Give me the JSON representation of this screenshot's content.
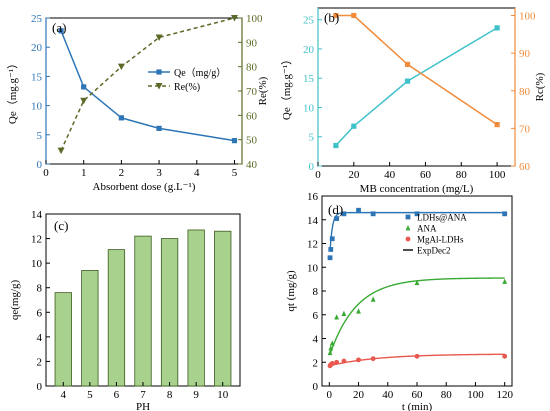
{
  "chart_data": [
    {
      "type": "line",
      "panel_label": "(a)",
      "xlabel": "Absorbent dose (g.L⁻¹)",
      "ylabel_left": "Qe（mg.g⁻¹）",
      "ylabel_right": "Re(%)",
      "xlim": [
        0,
        5.2
      ],
      "ylim_left": [
        0,
        25
      ],
      "ylim_right": [
        40,
        100
      ],
      "xticks": [
        "0",
        "1",
        "2",
        "3",
        "4",
        "5"
      ],
      "yticks_left": [
        "0",
        "5",
        "10",
        "15",
        "20",
        "25"
      ],
      "yticks_right": [
        "40",
        "50",
        "60",
        "70",
        "80",
        "90",
        "100"
      ],
      "colors": {
        "left": "#2e75b6",
        "right": "#5b6b27"
      },
      "series": [
        {
          "name": "Qe（mg/g）",
          "axis": "left",
          "marker": "square",
          "color": "#2e75b6",
          "style": "solid",
          "x": [
            0.4,
            1,
            2,
            3,
            5
          ],
          "y": [
            22.8,
            13.2,
            7.9,
            6.1,
            4.0
          ]
        },
        {
          "name": "Re(%)",
          "axis": "right",
          "marker": "triangle-down",
          "color": "#5b6b27",
          "style": "dashed",
          "x": [
            0.4,
            1,
            2,
            3,
            5
          ],
          "y": [
            45.5,
            66,
            80,
            92,
            100
          ]
        }
      ],
      "legend_position": "center-right"
    },
    {
      "type": "line",
      "panel_label": "(b)",
      "xlabel": "MB concentration (mg/L)",
      "ylabel_left": "Qe（mg.g⁻¹）",
      "ylabel_right": "Rc(%)",
      "xlim": [
        0,
        110
      ],
      "ylim_left": [
        0,
        27
      ],
      "ylim_right": [
        60,
        102
      ],
      "xticks": [
        "0",
        "20",
        "40",
        "60",
        "80",
        "100"
      ],
      "yticks_left": [
        "0",
        "5",
        "10",
        "15",
        "20",
        "25"
      ],
      "yticks_right": [
        "60",
        "70",
        "80",
        "90",
        "100"
      ],
      "colors": {
        "left": "#3fc1c9",
        "right": "#f08c3c"
      },
      "series": [
        {
          "axis": "left",
          "marker": "square",
          "color": "#3fc1c9",
          "x": [
            10,
            20,
            50,
            100
          ],
          "y": [
            3.5,
            6.8,
            14.5,
            23.6
          ]
        },
        {
          "axis": "right",
          "marker": "square",
          "color": "#f08c3c",
          "x": [
            10,
            20,
            50,
            100
          ],
          "y": [
            100,
            100,
            87,
            71
          ]
        }
      ]
    },
    {
      "type": "bar",
      "panel_label": "(c)",
      "xlabel": "PH",
      "ylabel": "qe(mg/g)",
      "ylim": [
        0,
        14
      ],
      "categories": [
        "4",
        "5",
        "6",
        "7",
        "8",
        "9",
        "10"
      ],
      "values": [
        7.6,
        9.4,
        11.1,
        12.2,
        12.0,
        12.7,
        12.6
      ],
      "yticks": [
        "0",
        "2",
        "4",
        "6",
        "8",
        "10",
        "12",
        "14"
      ],
      "bar_color": "#a9d18e",
      "bar_edge": "#3a5a1c"
    },
    {
      "type": "scatter",
      "panel_label": "(d)",
      "xlabel": "t (min)",
      "ylabel": "qt (mg/g)",
      "xlim": [
        -5,
        125
      ],
      "ylim": [
        0,
        16
      ],
      "xticks": [
        "0",
        "20",
        "40",
        "60",
        "80",
        "100",
        "120"
      ],
      "yticks": [
        "0",
        "2",
        "4",
        "6",
        "8",
        "10",
        "12",
        "14",
        "16"
      ],
      "series": [
        {
          "name": "LDHs@ANA",
          "marker": "square",
          "color": "#2e75b6",
          "x": [
            0.5,
            1,
            2,
            5,
            10,
            20,
            30,
            60,
            120
          ],
          "y": [
            10.8,
            11.5,
            12.4,
            14.1,
            14.5,
            14.8,
            14.5,
            14.5,
            14.5
          ]
        },
        {
          "name": "ANA",
          "marker": "triangle",
          "color": "#3aaa35",
          "x": [
            0.5,
            1,
            2,
            5,
            10,
            20,
            30,
            60,
            120
          ],
          "y": [
            2.8,
            3.2,
            3.6,
            5.8,
            6.1,
            6.3,
            7.3,
            8.7,
            8.8
          ]
        },
        {
          "name": "MgAl-LDHs",
          "marker": "circle",
          "color": "#e8584f",
          "x": [
            0.5,
            1,
            2,
            5,
            10,
            20,
            30,
            60,
            120
          ],
          "y": [
            1.7,
            1.8,
            1.9,
            2.0,
            2.1,
            2.2,
            2.3,
            2.5,
            2.5
          ]
        },
        {
          "name": "ExpDec2",
          "marker": "none",
          "color": "#000000",
          "style": "fit-line"
        }
      ],
      "fits": [
        {
          "color": "#2e75b6",
          "a": 14.6,
          "b": 10.2,
          "c": 0.0,
          "k": 0.6
        },
        {
          "color": "#3aaa35",
          "a": 9.1,
          "b": 6.6,
          "c": 2.5,
          "k": 0.055
        },
        {
          "color": "#e8584f",
          "a": 2.7,
          "b": 1.0,
          "c": 1.7,
          "k": 0.03
        }
      ],
      "legend_position": "top-right"
    }
  ]
}
